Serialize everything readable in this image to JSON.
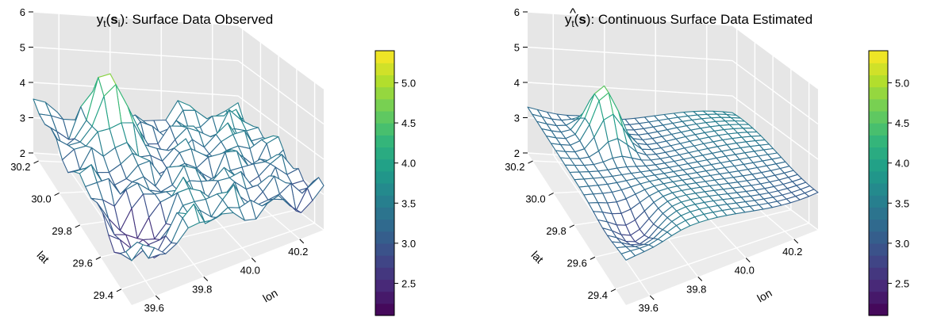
{
  "chart_data": [
    {
      "type": "surface",
      "title_parts": [
        "y",
        "t",
        "(",
        "s",
        "i",
        "): Surface Data Observed"
      ],
      "xlabel": "lon",
      "ylabel": "lat",
      "zlabel": "",
      "x_ticks": [
        "39.6",
        "39.8",
        "40.0",
        "40.2"
      ],
      "y_ticks": [
        "29.4",
        "29.6",
        "29.8",
        "30.0",
        "30.2"
      ],
      "z_ticks": [
        "2",
        "3",
        "4",
        "5",
        "6"
      ],
      "xlim": [
        39.5,
        40.3
      ],
      "ylim": [
        29.3,
        30.25
      ],
      "zlim": [
        2,
        6
      ],
      "grid": true,
      "colormap": "viridis",
      "surface_peak": {
        "lon": 39.72,
        "lat": 30.05,
        "z": 5.4
      },
      "surface_low": {
        "lon": 39.62,
        "lat": 29.5,
        "z": 2.1
      },
      "colorbar": {
        "ticks": [
          "2.5",
          "3.0",
          "3.5",
          "4.0",
          "4.5",
          "5.0"
        ],
        "range": [
          2.1,
          5.4
        ]
      }
    },
    {
      "type": "surface",
      "title_parts": [
        "y",
        "t",
        "(",
        "s",
        "): Continuous Surface Data Estimated"
      ],
      "title_hat": "^",
      "xlabel": "lon",
      "ylabel": "lat",
      "zlabel": "",
      "x_ticks": [
        "39.6",
        "39.8",
        "40.0",
        "40.2"
      ],
      "y_ticks": [
        "29.4",
        "29.6",
        "29.8",
        "30.0",
        "30.2"
      ],
      "z_ticks": [
        "2",
        "3",
        "4",
        "5",
        "6"
      ],
      "xlim": [
        39.5,
        40.3
      ],
      "ylim": [
        29.3,
        30.25
      ],
      "zlim": [
        2,
        6
      ],
      "grid": true,
      "colormap": "viridis",
      "surface_peak": {
        "lon": 39.72,
        "lat": 30.05,
        "z": 5.0
      },
      "surface_low": {
        "lon": 39.62,
        "lat": 29.5,
        "z": 2.6
      },
      "colorbar": {
        "ticks": [
          "2.5",
          "3.0",
          "3.5",
          "4.0",
          "4.5",
          "5.0"
        ],
        "range": [
          2.1,
          5.4
        ]
      }
    }
  ]
}
